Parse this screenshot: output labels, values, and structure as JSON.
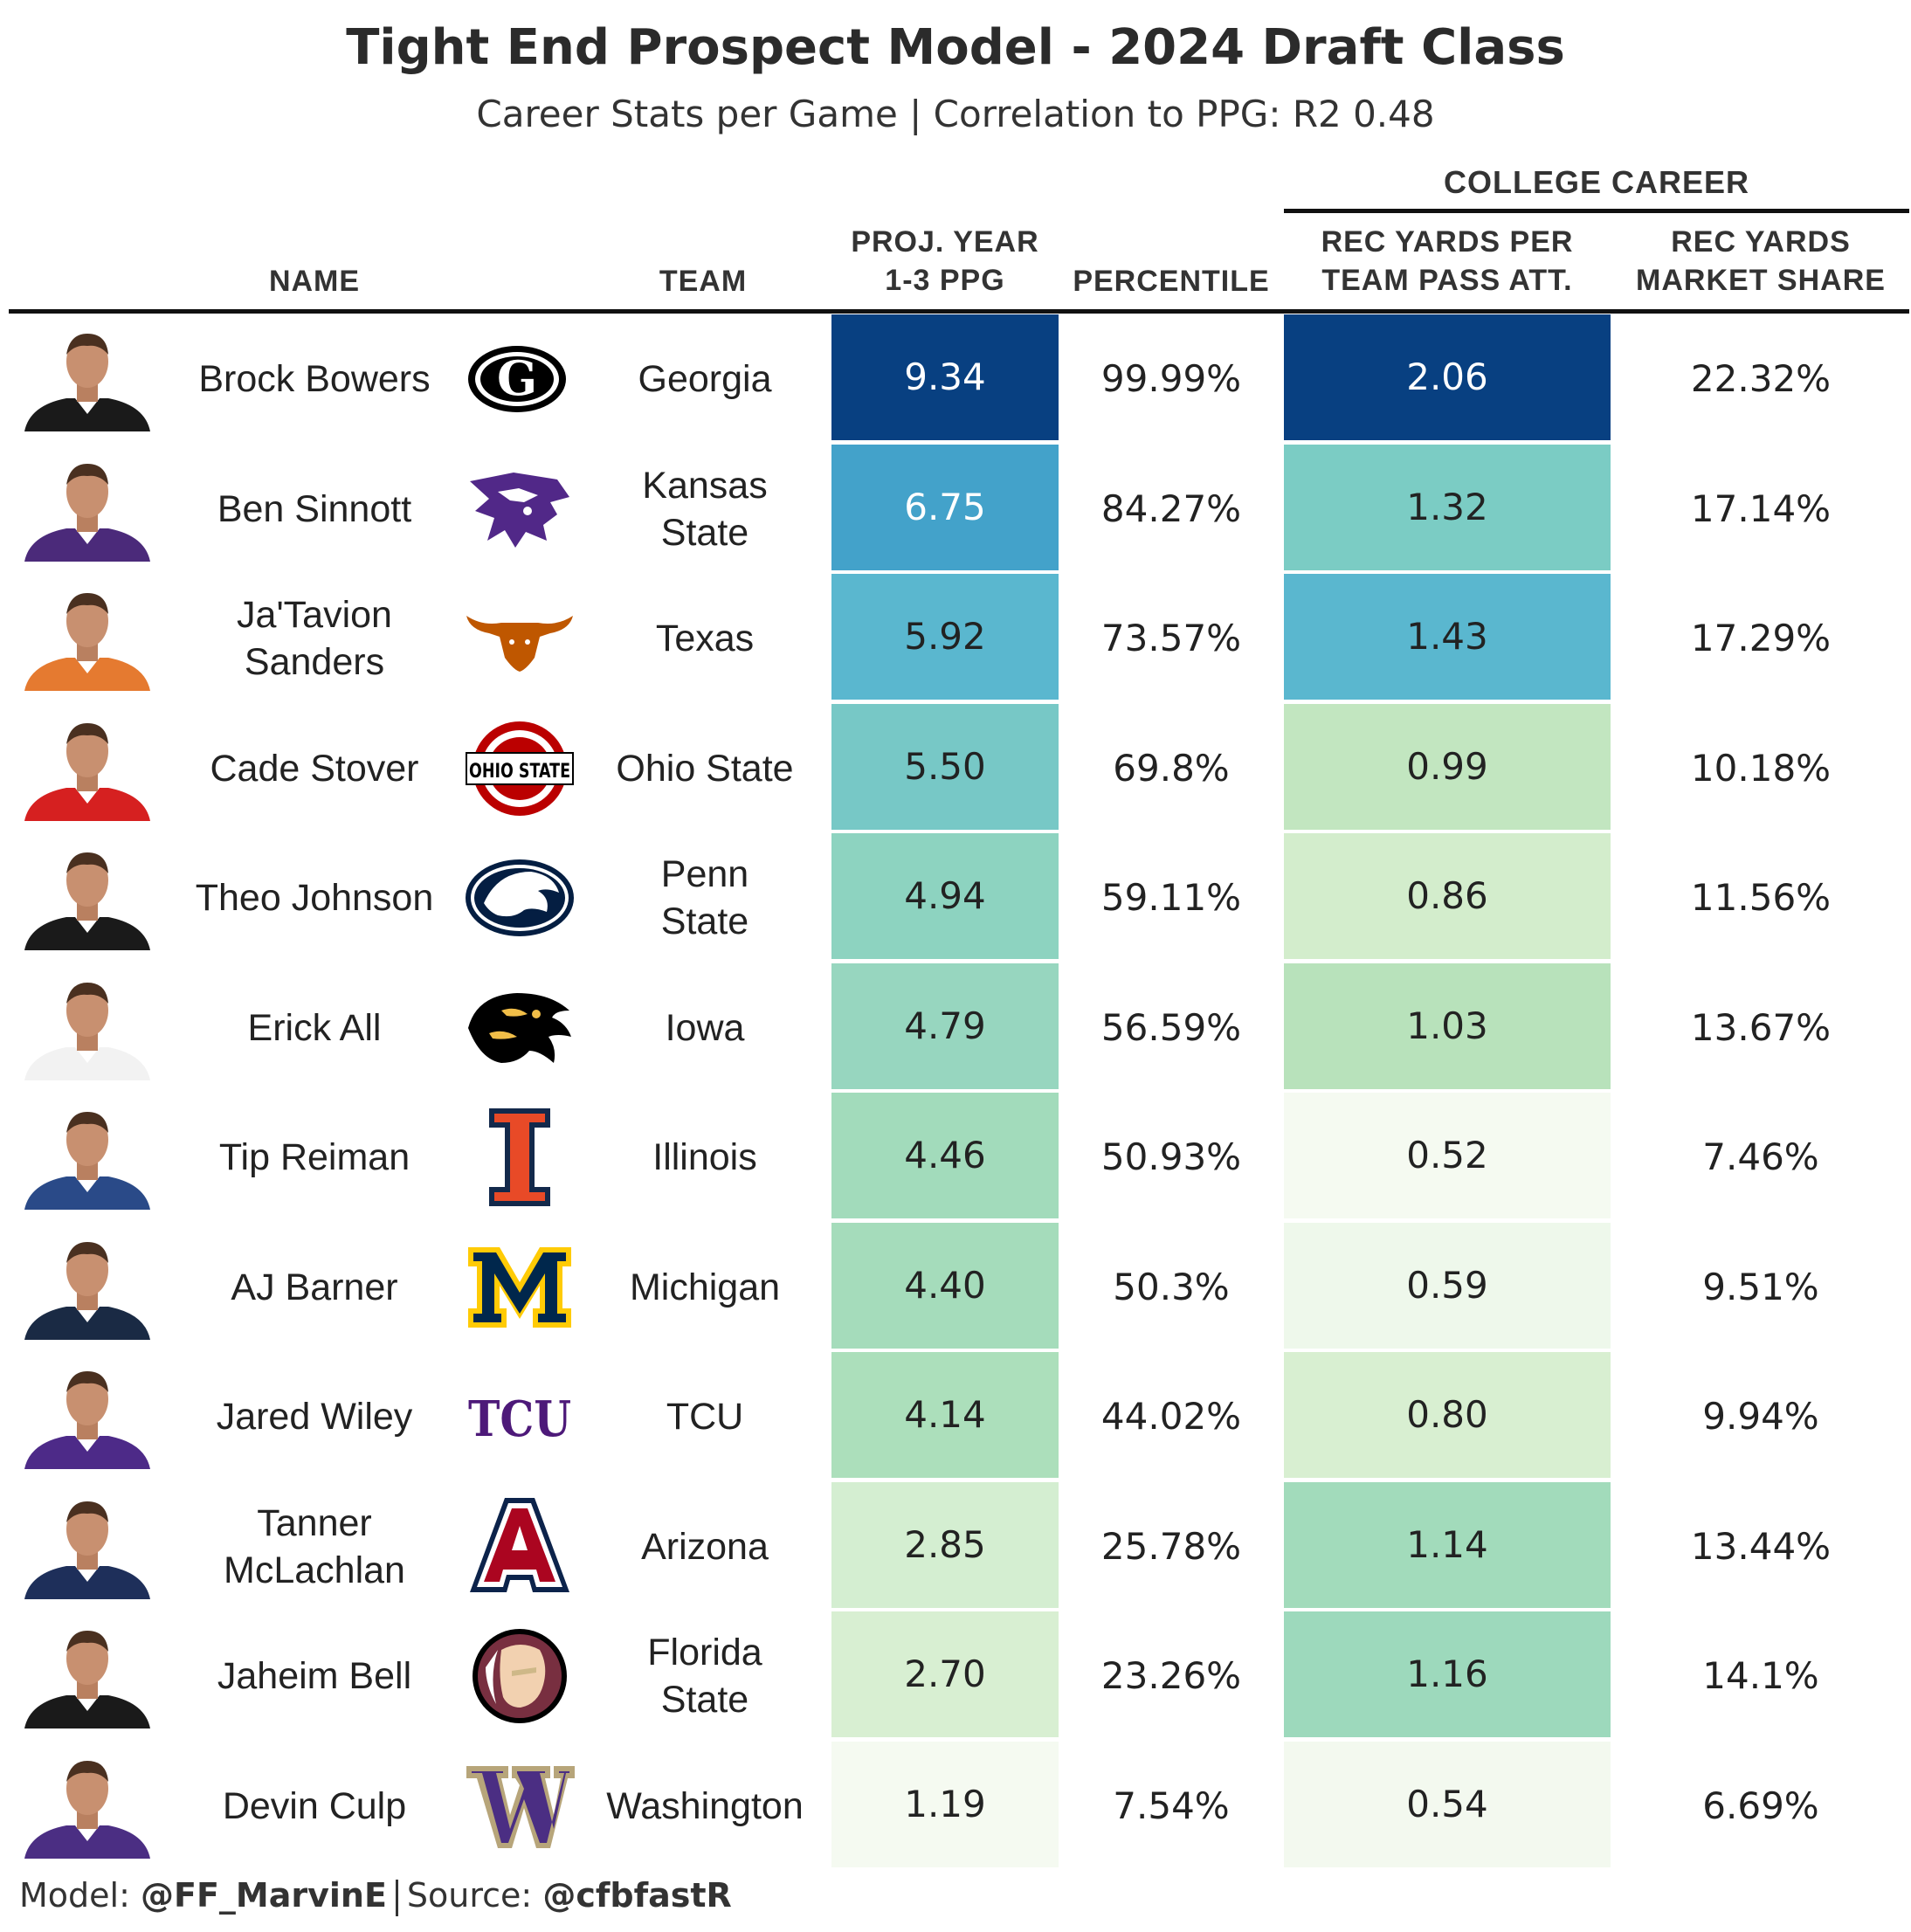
{
  "title": "Tight End Prospect Model - 2024 Draft Class",
  "subtitle": "Career Stats per Game | Correlation to PPG: R2 0.48",
  "spanner": "COLLEGE CAREER",
  "columns": {
    "name": "NAME",
    "team": "TEAM",
    "ppg_line1": "PROJ. YEAR",
    "ppg_line2": "1-3 PPG",
    "percentile": "PERCENTILE",
    "recypa_line1": "REC YARDS PER",
    "recypa_line2": "TEAM PASS ATT.",
    "share_line1": "REC YARDS",
    "share_line2": "MARKET SHARE"
  },
  "rows": [
    {
      "name": "Brock Bowers",
      "team": "Georgia",
      "logo": "georgia-g-logo",
      "logo_color": "#000000",
      "jersey": "#1a1a1a",
      "ppg": "9.34",
      "percentile": "99.99%",
      "recypa": "2.06",
      "share": "22.32%",
      "ppg_color": "#084081",
      "ppg_text": "#ffffff",
      "recypa_color": "#084081",
      "recypa_text": "#ffffff"
    },
    {
      "name": "Ben Sinnott",
      "team": "Kansas State",
      "logo": "kstate-wildcat-logo",
      "logo_color": "#512888",
      "jersey": "#4b2a7a",
      "ppg": "6.75",
      "percentile": "84.27%",
      "recypa": "1.32",
      "share": "17.14%",
      "ppg_color": "#43a2ca",
      "ppg_text": "#ffffff",
      "recypa_color": "#7bccc4",
      "recypa_text": "#222222"
    },
    {
      "name": "Ja'Tavion Sanders",
      "team": "Texas",
      "logo": "texas-longhorn-logo",
      "logo_color": "#bf5700",
      "jersey": "#e57a30",
      "ppg": "5.92",
      "percentile": "73.57%",
      "recypa": "1.43",
      "share": "17.29%",
      "ppg_color": "#5ab7cf",
      "ppg_text": "#222222",
      "recypa_color": "#5ab7cf",
      "recypa_text": "#222222"
    },
    {
      "name": "Cade Stover",
      "team": "Ohio State",
      "logo": "ohio-state-logo",
      "logo_color": "#bb0000",
      "jersey": "#d62020",
      "ppg": "5.50",
      "percentile": "69.8%",
      "recypa": "0.99",
      "share": "10.18%",
      "ppg_color": "#77c8c6",
      "ppg_text": "#222222",
      "recypa_color": "#c2e6c0",
      "recypa_text": "#222222"
    },
    {
      "name": "Theo Johnson",
      "team": "Penn State",
      "logo": "penn-state-lion-logo",
      "logo_color": "#041e42",
      "jersey": "#1a1a1a",
      "ppg": "4.94",
      "percentile": "59.11%",
      "recypa": "0.86",
      "share": "11.56%",
      "ppg_color": "#8dd3c0",
      "ppg_text": "#222222",
      "recypa_color": "#d3edcc",
      "recypa_text": "#222222"
    },
    {
      "name": "Erick All",
      "team": "Iowa",
      "logo": "iowa-hawk-logo",
      "logo_color": "#000000",
      "jersey": "#f2f2f2",
      "ppg": "4.79",
      "percentile": "56.59%",
      "recypa": "1.03",
      "share": "13.67%",
      "ppg_color": "#97d6bf",
      "ppg_text": "#222222",
      "recypa_color": "#b8e2bb",
      "recypa_text": "#222222"
    },
    {
      "name": "Tip Reiman",
      "team": "Illinois",
      "logo": "illinois-i-logo",
      "logo_color": "#e84a27",
      "jersey": "#2a4a88",
      "ppg": "4.46",
      "percentile": "50.93%",
      "recypa": "0.52",
      "share": "7.46%",
      "ppg_color": "#a2dbbb",
      "ppg_text": "#222222",
      "recypa_color": "#f5faf1",
      "recypa_text": "#222222"
    },
    {
      "name": "AJ Barner",
      "team": "Michigan",
      "logo": "michigan-m-logo",
      "logo_color": "#00274c",
      "jersey": "#1a2a44",
      "ppg": "4.40",
      "percentile": "50.3%",
      "recypa": "0.59",
      "share": "9.51%",
      "ppg_color": "#a5dcbb",
      "ppg_text": "#222222",
      "recypa_color": "#eef8eb",
      "recypa_text": "#222222"
    },
    {
      "name": "Jared Wiley",
      "team": "TCU",
      "logo": "tcu-logo",
      "logo_color": "#4d1979",
      "jersey": "#4d2a88",
      "ppg": "4.14",
      "percentile": "44.02%",
      "recypa": "0.80",
      "share": "9.94%",
      "ppg_color": "#acdfbb",
      "ppg_text": "#222222",
      "recypa_color": "#d8efd1",
      "recypa_text": "#222222"
    },
    {
      "name": "Tanner McLachlan",
      "team": "Arizona",
      "logo": "arizona-a-logo",
      "logo_color": "#ab0520",
      "jersey": "#1e2f5a",
      "ppg": "2.85",
      "percentile": "25.78%",
      "recypa": "1.14",
      "share": "13.44%",
      "ppg_color": "#d4eed1",
      "ppg_text": "#222222",
      "recypa_color": "#a2dbbb",
      "recypa_text": "#222222"
    },
    {
      "name": "Jaheim Bell",
      "team": "Florida State",
      "logo": "fsu-seminole-logo",
      "logo_color": "#782f40",
      "jersey": "#1a1a1a",
      "ppg": "2.70",
      "percentile": "23.26%",
      "recypa": "1.16",
      "share": "14.1%",
      "ppg_color": "#d8efd2",
      "ppg_text": "#222222",
      "recypa_color": "#9dd9bc",
      "recypa_text": "#222222"
    },
    {
      "name": "Devin Culp",
      "team": "Washington",
      "logo": "washington-w-logo",
      "logo_color": "#4b2e83",
      "jersey": "#4b2e83",
      "ppg": "1.19",
      "percentile": "7.54%",
      "recypa": "0.54",
      "share": "6.69%",
      "ppg_color": "#f5faf1",
      "ppg_text": "#222222",
      "recypa_color": "#f3f9ef",
      "recypa_text": "#222222"
    }
  ],
  "footer": {
    "model_label": "Model: ",
    "model_handle": "@FF_MarvinE",
    "source_label": "Source: ",
    "source_handle": "@cfbfastR"
  },
  "logo_text": {
    "georgia": "G",
    "ohio": "OHIO STATE",
    "illinois": "I",
    "michigan": "M",
    "tcu": "TCU",
    "arizona": "A",
    "washington": "W"
  }
}
